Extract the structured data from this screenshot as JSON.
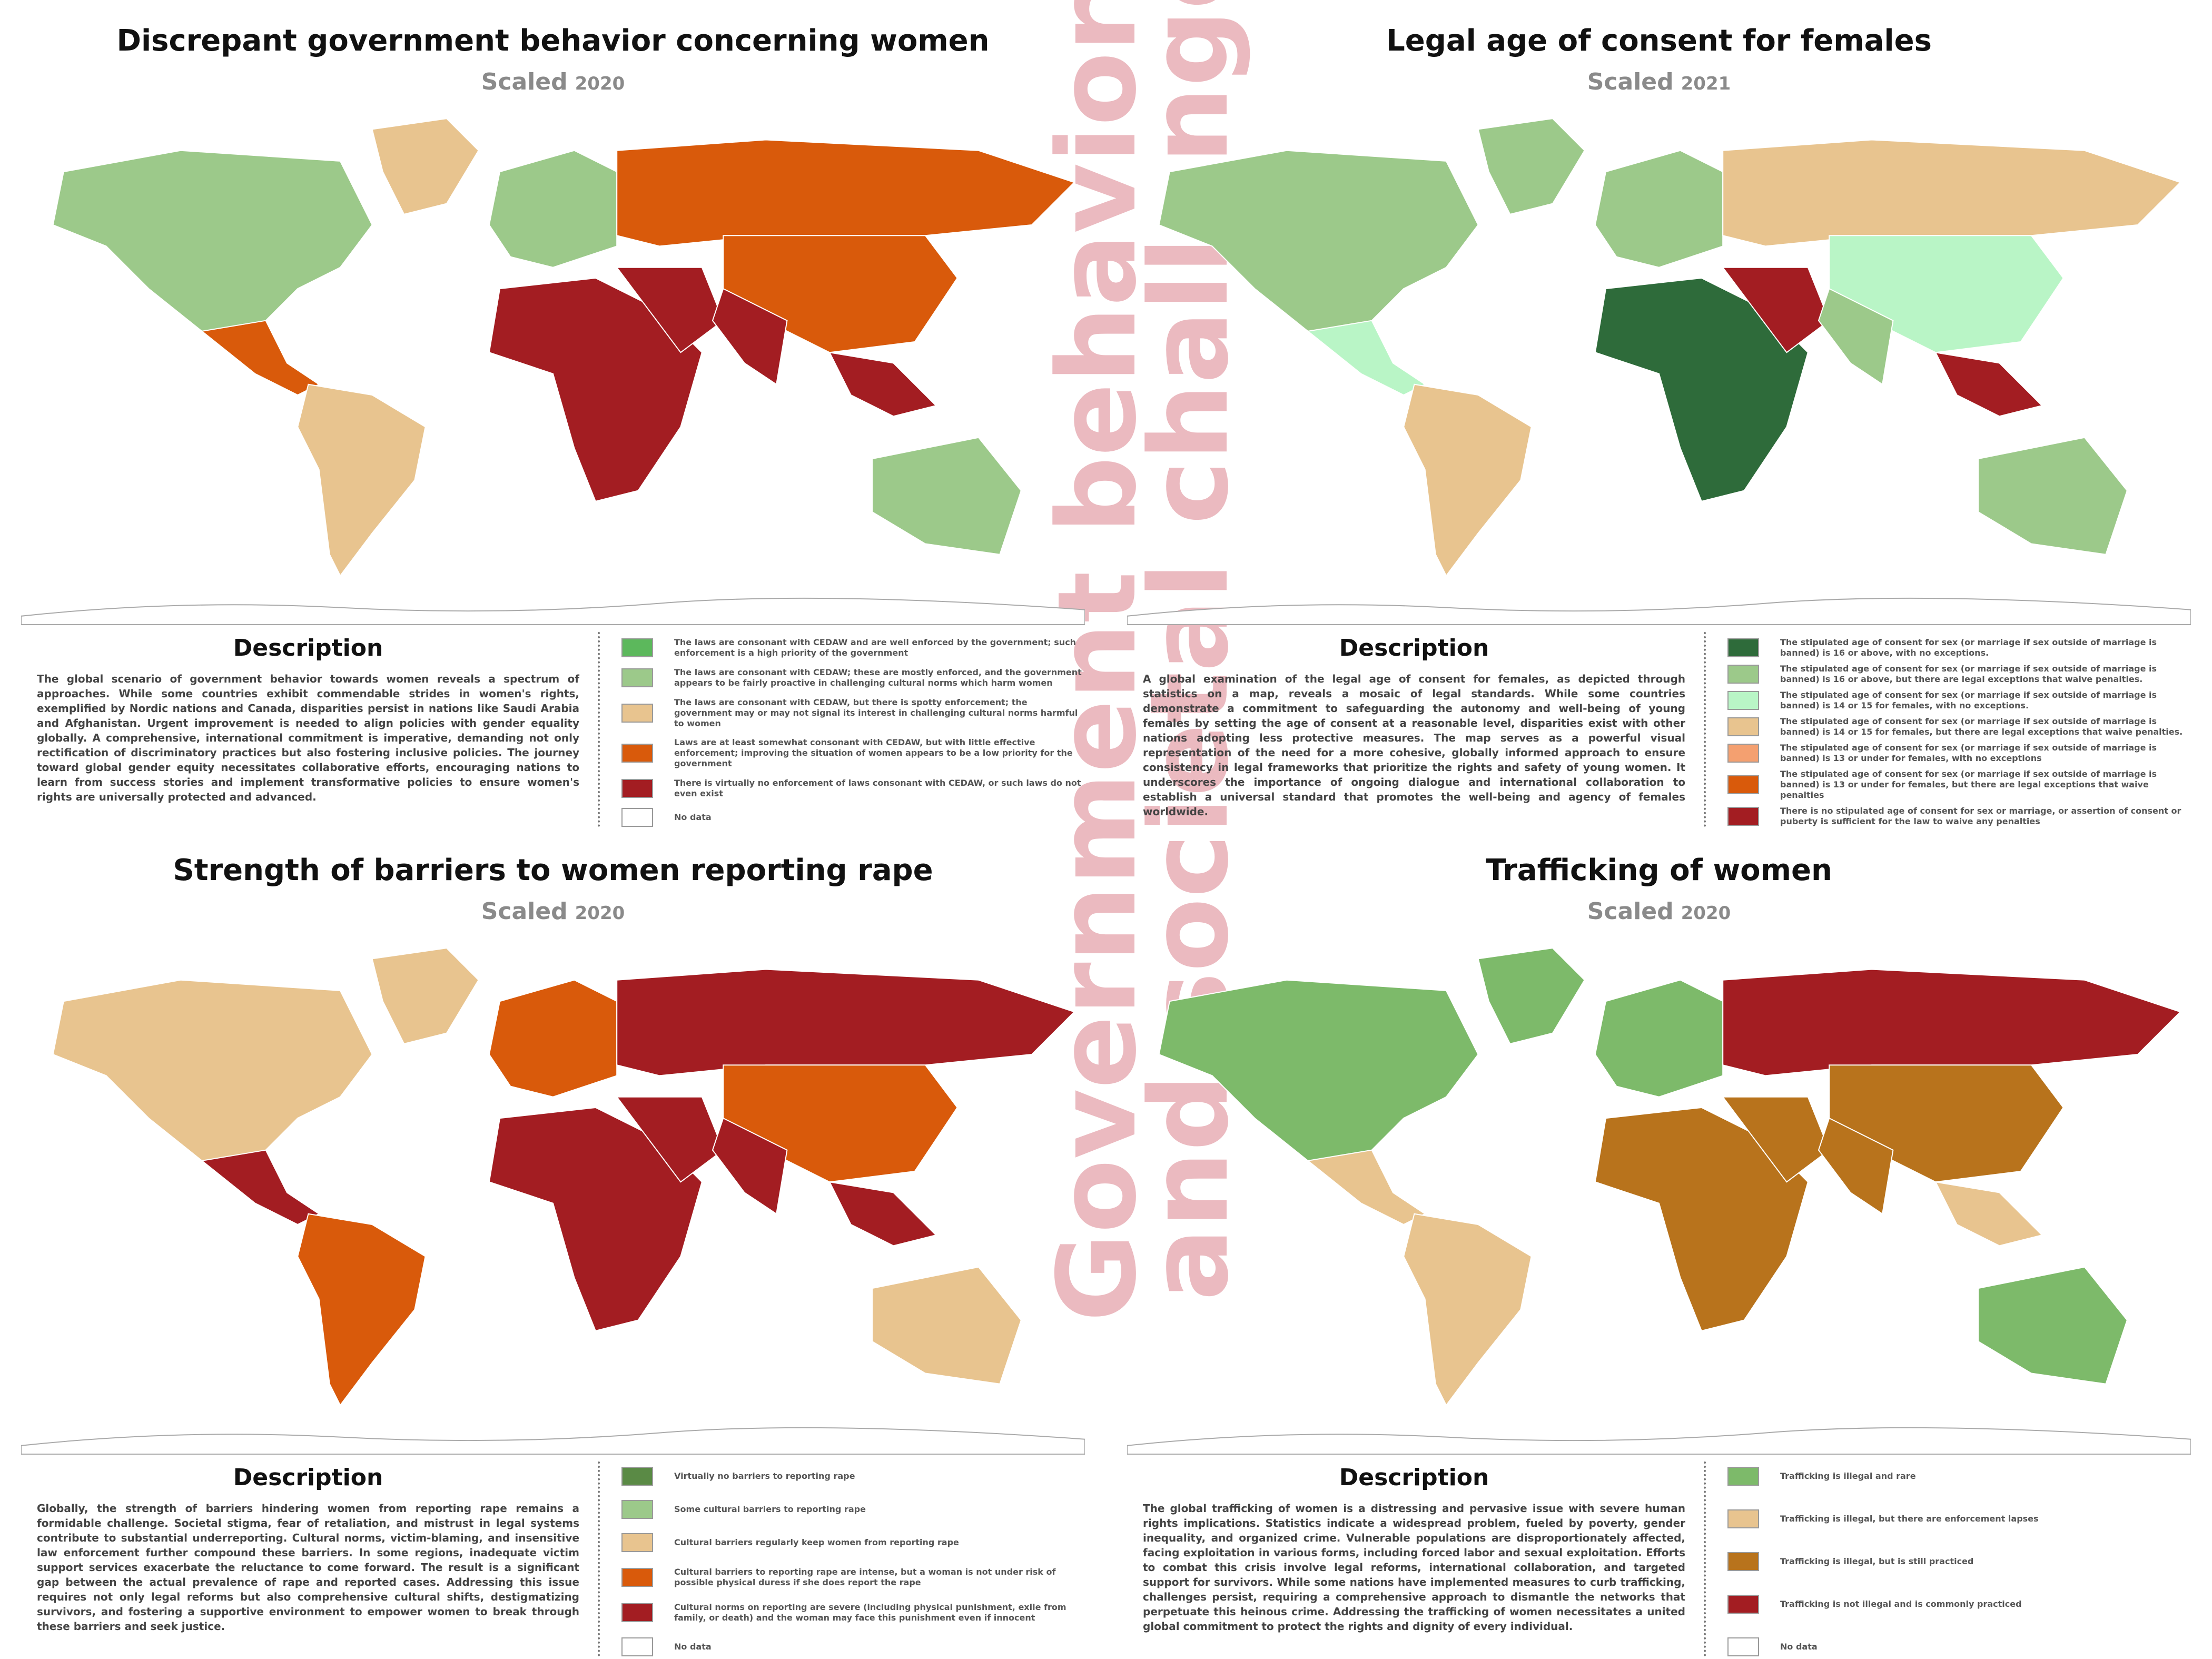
{
  "watermark": {
    "line1": "Government behavior",
    "line2": "and societal challenges"
  },
  "panels": [
    {
      "title": "Discrepant government behavior concerning women",
      "subtitle": "Scaled",
      "year": "2020",
      "description_heading": "Description",
      "description": "The global scenario of government behavior towards women reveals a spectrum of approaches. While some countries exhibit commendable strides in women's rights, exemplified by Nordic nations and Canada, disparities persist in nations like Saudi Arabia and Afghanistan. Urgent improvement is needed to align policies with gender equality globally. A comprehensive, international commitment is imperative, demanding not only rectification of discriminatory practices but also fostering inclusive policies. The journey toward global gender equity necessitates collaborative efforts, encouraging nations to learn from success stories and implement transformative policies to ensure women's rights are universally protected and advanced.",
      "legend": [
        {
          "color": "#5cb85c",
          "label": "The laws are consonant with CEDAW and are well enforced by the government; such enforcement is a high priority of the government"
        },
        {
          "color": "#9cc98a",
          "label": "The laws are consonant with CEDAW; these are mostly enforced, and the government appears to be fairly proactive in challenging cultural norms which harm women"
        },
        {
          "color": "#e8c48f",
          "label": "The laws are consonant with CEDAW, but there is spotty enforcement; the government may or may not signal its interest in challenging cultural norms harmful to women"
        },
        {
          "color": "#d95a0b",
          "label": "Laws are at least somewhat consonant with CEDAW, but with little effective enforcement; improving the situation of women appears to be a low priority for the government"
        },
        {
          "color": "#a31d22",
          "label": "There is virtually no enforcement of laws consonant with CEDAW, or such laws do not even exist"
        },
        {
          "color": "#ffffff",
          "label": "No data"
        }
      ]
    },
    {
      "title": "Legal age of consent for females",
      "subtitle": "Scaled",
      "year": "2021",
      "description_heading": "Description",
      "description": "A global examination of the legal age of consent for females, as depicted through statistics on a map, reveals a mosaic of legal standards. While some countries demonstrate a commitment to safeguarding the autonomy and well-being of young females by setting the age of consent at a reasonable level, disparities exist with other nations adopting less protective measures. The map serves as a powerful visual representation of the need for a more cohesive, globally informed approach to ensure consistency in legal frameworks that prioritize the rights and safety of young women. It underscores the importance of ongoing dialogue and international collaboration to establish a universal standard that promotes the well-being and agency of females worldwide.",
      "legend": [
        {
          "color": "#2e6b3a",
          "label": "The stipulated age of consent for sex (or marriage if sex outside of marriage is banned) is 16 or above, with no exceptions."
        },
        {
          "color": "#9cc98a",
          "label": "The stipulated age of consent for sex (or marriage if sex outside of marriage is banned) is 16 or above, but there are legal exceptions that waive penalties."
        },
        {
          "color": "#b9f5c6",
          "label": "The stipulated age of consent for sex (or marriage if sex outside of marriage is banned) is 14 or 15 for females, with no exceptions."
        },
        {
          "color": "#e8c48f",
          "label": "The stipulated age of consent for sex (or marriage if sex outside of marriage is banned) is 14 or 15 for females, but there are legal exceptions that waive penalties."
        },
        {
          "color": "#f4a070",
          "label": "The stipulated age of consent for sex (or marriage if sex outside of marriage is banned) is 13 or under for females, with no exceptions"
        },
        {
          "color": "#d95a0b",
          "label": "The stipulated age of consent for sex (or marriage if sex outside of marriage is banned) is 13 or under for females, but there are legal exceptions that waive penalties"
        },
        {
          "color": "#a31d22",
          "label": "There is no stipulated age of consent for sex or marriage, or assertion of consent or puberty is sufficient for the law to waive any penalties"
        }
      ]
    },
    {
      "title": "Strength of barriers to women reporting rape",
      "subtitle": "Scaled",
      "year": "2020",
      "description_heading": "Description",
      "description": "Globally, the strength of barriers hindering women from reporting rape remains a formidable challenge. Societal stigma, fear of retaliation, and mistrust in legal systems contribute to substantial underreporting. Cultural norms, victim-blaming, and insensitive law enforcement further compound these barriers. In some regions, inadequate victim support services exacerbate the reluctance to come forward. The result is a significant gap between the actual prevalence of rape and reported cases. Addressing this issue requires not only legal reforms but also comprehensive cultural shifts, destigmatizing survivors, and fostering a supportive environment to empower women to break through these barriers and seek justice.",
      "legend": [
        {
          "color": "#5a8a45",
          "label": "Virtually no barriers to reporting rape"
        },
        {
          "color": "#9cc98a",
          "label": "Some cultural barriers to reporting rape"
        },
        {
          "color": "#e8c48f",
          "label": "Cultural barriers regularly keep women from reporting rape"
        },
        {
          "color": "#d95a0b",
          "label": "Cultural barriers to reporting rape are intense, but a woman is not under risk of possible physical duress if she does report the rape"
        },
        {
          "color": "#a31d22",
          "label": "Cultural norms on reporting are severe (including physical punishment, exile from family, or death) and the woman may face this punishment even if innocent"
        },
        {
          "color": "#ffffff",
          "label": "No data"
        }
      ]
    },
    {
      "title": "Trafficking of women",
      "subtitle": "Scaled",
      "year": "2020",
      "description_heading": "Description",
      "description": "The global trafficking of women is a distressing and pervasive issue with severe human rights implications. Statistics indicate a widespread problem, fueled by poverty, gender inequality, and organized crime. Vulnerable populations are disproportionately affected, facing exploitation in various forms, including forced labor and sexual exploitation. Efforts to combat this crisis involve legal reforms, international collaboration, and targeted support for survivors. While some nations have implemented measures to curb trafficking, challenges persist, requiring a comprehensive approach to dismantle the networks that perpetuate this heinous crime. Addressing the trafficking of women necessitates a united global commitment to protect the rights and dignity of every individual.",
      "legend": [
        {
          "color": "#7dba6a",
          "label": "Trafficking is illegal and rare"
        },
        {
          "color": "#e8c48f",
          "label": "Trafficking is illegal, but there are enforcement lapses"
        },
        {
          "color": "#b8731c",
          "label": "Trafficking is illegal, but is still practiced"
        },
        {
          "color": "#a31d22",
          "label": "Trafficking is not illegal and is commonly practiced"
        },
        {
          "color": "#ffffff",
          "label": "No data"
        }
      ]
    }
  ]
}
